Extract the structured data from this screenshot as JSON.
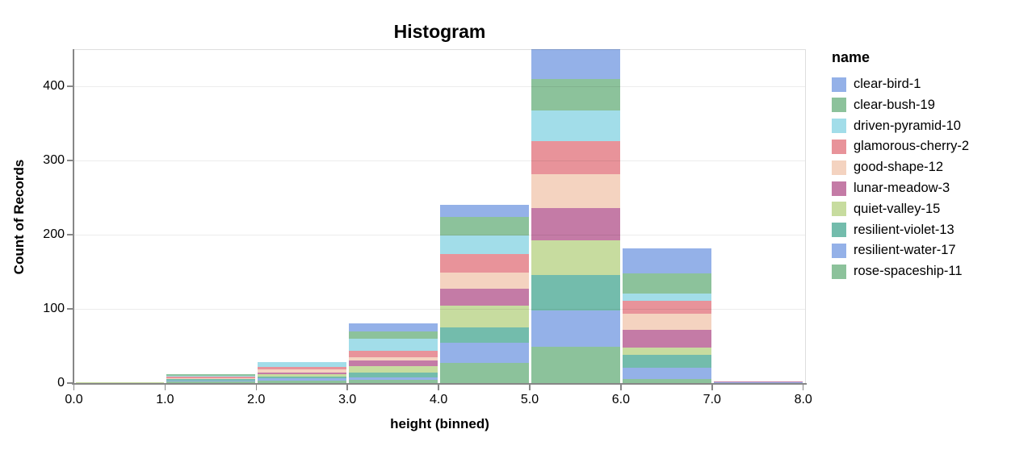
{
  "title": "Histogram",
  "legend": {
    "title": "name"
  },
  "axes": {
    "x": {
      "title": "height (binned)",
      "tick_labels": [
        "0.0",
        "1.0",
        "2.0",
        "3.0",
        "4.0",
        "5.0",
        "6.0",
        "7.0",
        "8.0"
      ],
      "domain": [
        0,
        8
      ]
    },
    "y": {
      "title": "Count of Records",
      "tick_labels": [
        "0",
        "100",
        "200",
        "300",
        "400"
      ],
      "tick_values": [
        0,
        100,
        200,
        300,
        400
      ],
      "domain": [
        0,
        450
      ]
    }
  },
  "colors": {
    "axis": "#878787",
    "grid": "#dddddd",
    "text": "#000000",
    "plot_border": "#dddddd",
    "background": "#ffffff"
  },
  "chart_data": {
    "type": "bar",
    "subtype": "stacked-histogram",
    "title": "Histogram",
    "xlabel": "height (binned)",
    "ylabel": "Count of Records",
    "xlim": [
      0,
      8
    ],
    "ylim": [
      0,
      450
    ],
    "grid": true,
    "legend_position": "right",
    "bin_edges": [
      0,
      1,
      2,
      3,
      4,
      5,
      6,
      7,
      8
    ],
    "stack_note": "bars stacked bottom-to-top in reverse order of the series list (rose-spaceship-11 at bottom, clear-bird-1 on top)",
    "series": [
      {
        "name": "clear-bird-1",
        "color": "#94b1e8",
        "values": [
          0,
          0,
          0,
          10,
          16,
          40,
          34,
          0
        ]
      },
      {
        "name": "clear-bush-19",
        "color": "#8cc29b",
        "values": [
          0,
          2,
          0,
          10,
          25,
          43,
          27,
          0
        ]
      },
      {
        "name": "driven-pyramid-10",
        "color": "#a2dde9",
        "values": [
          0,
          1,
          6,
          17,
          25,
          41,
          10,
          0
        ]
      },
      {
        "name": "glamorous-cherry-2",
        "color": "#e8939a",
        "values": [
          0,
          2,
          4,
          8,
          25,
          44,
          17,
          0
        ]
      },
      {
        "name": "good-shape-12",
        "color": "#f4d3c0",
        "values": [
          0,
          1,
          4,
          5,
          22,
          46,
          22,
          0
        ]
      },
      {
        "name": "lunar-meadow-3",
        "color": "#c47ba6",
        "values": [
          0,
          0,
          2,
          7,
          23,
          44,
          24,
          1
        ]
      },
      {
        "name": "quiet-valley-15",
        "color": "#c7dc9f",
        "values": [
          1,
          1,
          3,
          9,
          29,
          46,
          10,
          0
        ]
      },
      {
        "name": "resilient-violet-13",
        "color": "#73bcac",
        "values": [
          0,
          2,
          3,
          6,
          21,
          48,
          17,
          0
        ]
      },
      {
        "name": "resilient-water-17",
        "color": "#94b1e8",
        "values": [
          0,
          1,
          3,
          4,
          27,
          49,
          16,
          1
        ]
      },
      {
        "name": "rose-spaceship-11",
        "color": "#8cc29b",
        "values": [
          0,
          2,
          3,
          4,
          27,
          49,
          5,
          0
        ]
      }
    ]
  }
}
